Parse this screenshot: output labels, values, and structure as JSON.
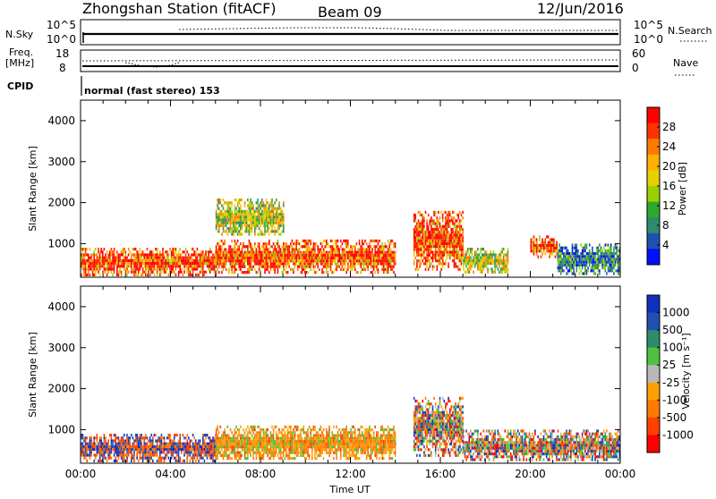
{
  "header": {
    "station": "Zhongshan Station (fitACF)",
    "beam": "Beam 09",
    "date": "12/Jun/2016"
  },
  "summary": {
    "nsky_label": "N.Sky",
    "nsky_ticks": [
      "10^5",
      "10^0"
    ],
    "nsearch_label": "N.Search",
    "nsearch_ticks": [
      "10^5",
      "10^0"
    ],
    "freq_label_1": "Freq.",
    "freq_label_2": "[MHz]",
    "freq_ticks": [
      "18",
      "8"
    ],
    "nave_label": "Nave",
    "nave_ticks": [
      "60",
      "0"
    ],
    "cpid_label": "CPID",
    "cpid_text": "normal (fast stereo) 153"
  },
  "chart_data": [
    {
      "type": "heatmap",
      "name": "power-panel",
      "xlabel": "",
      "ylabel": "Slant Range [km]",
      "xlim": [
        0,
        24
      ],
      "ylim": [
        180,
        4500
      ],
      "y_ticks": [
        "1000",
        "2000",
        "3000",
        "4000"
      ],
      "colorbar": {
        "label": "Power [dB]",
        "ticks": [
          "28",
          "24",
          "20",
          "16",
          "12",
          "8",
          "4"
        ],
        "colors": [
          "#ff0000",
          "#ff3300",
          "#ff7a00",
          "#ffb000",
          "#e8d000",
          "#9ad000",
          "#2ea82e",
          "#2e8c6c",
          "#2050b0",
          "#0010ff"
        ]
      },
      "echo_regions": [
        {
          "t": [
            0.0,
            6.0
          ],
          "r": [
            250,
            900
          ],
          "level": "strong"
        },
        {
          "t": [
            6.0,
            14.0
          ],
          "r": [
            300,
            1100
          ],
          "level": "strong"
        },
        {
          "t": [
            6.0,
            9.0
          ],
          "r": [
            1200,
            2100
          ],
          "level": "medium"
        },
        {
          "t": [
            14.8,
            17.0
          ],
          "r": [
            400,
            1800
          ],
          "level": "strong"
        },
        {
          "t": [
            17.0,
            19.0
          ],
          "r": [
            300,
            900
          ],
          "level": "medium"
        },
        {
          "t": [
            20.0,
            21.2
          ],
          "r": [
            700,
            1200
          ],
          "level": "strong"
        },
        {
          "t": [
            21.2,
            24.0
          ],
          "r": [
            250,
            1000
          ],
          "level": "weak"
        }
      ]
    },
    {
      "type": "heatmap",
      "name": "velocity-panel",
      "xlabel": "Time UT",
      "ylabel": "Slant Range [km]",
      "xlim": [
        0,
        24
      ],
      "ylim": [
        180,
        4500
      ],
      "x_ticks": [
        "00:00",
        "04:00",
        "08:00",
        "12:00",
        "16:00",
        "20:00",
        "00:00"
      ],
      "y_ticks": [
        "1000",
        "2000",
        "3000",
        "4000"
      ],
      "colorbar": {
        "label": "Velocity [m s⁻¹]",
        "ticks": [
          "1000",
          "500",
          "100",
          "25",
          "-25",
          "-100",
          "-500",
          "-1000"
        ],
        "colors": [
          "#1030c0",
          "#2050b0",
          "#2e8c6c",
          "#50c040",
          "#b8b8b8",
          "#ffa000",
          "#ff7a00",
          "#ff4000",
          "#ff0000"
        ]
      },
      "echo_regions": [
        {
          "t": [
            0.0,
            6.0
          ],
          "r": [
            250,
            900
          ],
          "level": "mixed-blue-orange"
        },
        {
          "t": [
            6.0,
            14.0
          ],
          "r": [
            300,
            1100
          ],
          "level": "orange"
        },
        {
          "t": [
            14.8,
            17.0
          ],
          "r": [
            400,
            1800
          ],
          "level": "mixed"
        },
        {
          "t": [
            17.0,
            24.0
          ],
          "r": [
            250,
            1000
          ],
          "level": "mixed"
        }
      ]
    }
  ]
}
